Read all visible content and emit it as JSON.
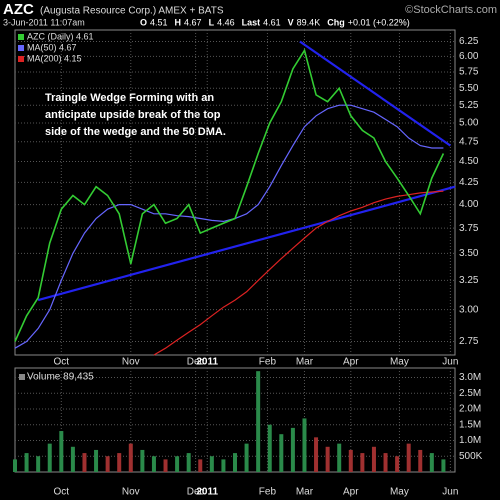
{
  "chart_data": {
    "type": "line",
    "title": "AZC",
    "subtitle": "(Augusta Resource Corp.) AMEX + BATS",
    "source": "©StockCharts.com",
    "date": "3-Jun-2011 11:07am",
    "quote": [
      {
        "label": "O",
        "value": "4.51"
      },
      {
        "label": "H",
        "value": "4.67"
      },
      {
        "label": "L",
        "value": "4.46"
      },
      {
        "label": "Last",
        "value": "4.61"
      },
      {
        "label": "V",
        "value": "89.4K"
      },
      {
        "label": "Chg",
        "value": "+0.01 (+0.22%)"
      }
    ],
    "annotation": [
      "Traingle Wedge Forming with an",
      "anticipate upside break of the top",
      "side of the wedge and the 50 DMA."
    ],
    "x": [
      0,
      5,
      10,
      15,
      20,
      25,
      30,
      35,
      40,
      45,
      50,
      55,
      60,
      65,
      70,
      75,
      80,
      85,
      90,
      95,
      100,
      105,
      110,
      115,
      120,
      125,
      130,
      135,
      140,
      145,
      150,
      155,
      160,
      165,
      170,
      175,
      180,
      185
    ],
    "xlim": [
      0,
      190
    ],
    "xticks": [
      {
        "value": 20,
        "label": "Oct"
      },
      {
        "value": 50,
        "label": "Nov"
      },
      {
        "value": 78,
        "label": "Dec"
      },
      {
        "value": 83,
        "label": "2011"
      },
      {
        "value": 109,
        "label": "Feb"
      },
      {
        "value": 125,
        "label": "Mar"
      },
      {
        "value": 145,
        "label": "Apr"
      },
      {
        "value": 166,
        "label": "May"
      },
      {
        "value": 188,
        "label": "Jun"
      }
    ],
    "log_scale": true,
    "grid": true,
    "ylim": [
      2.65,
      6.45
    ],
    "yticks": [
      2.75,
      {
        "value": 3,
        "label": "3.00"
      },
      3.25,
      {
        "value": 3.5,
        "label": "3.50"
      },
      3.75,
      {
        "value": 4,
        "label": "4.00"
      },
      4.25,
      {
        "value": 4.5,
        "label": "4.50"
      },
      4.75,
      {
        "value": 5,
        "label": "5.00"
      },
      5.25,
      {
        "value": 5.5,
        "label": "5.50"
      },
      5.75,
      {
        "value": 6,
        "label": "6.00"
      },
      6.25
    ],
    "series": [
      {
        "name": "AZC (Daily) 4.61",
        "color": "#33cc33",
        "values": [
          2.75,
          2.95,
          3.1,
          3.6,
          3.95,
          4.1,
          4.0,
          4.2,
          4.1,
          3.9,
          3.4,
          3.9,
          4.0,
          3.8,
          3.85,
          4.0,
          3.7,
          3.75,
          3.8,
          3.85,
          4.2,
          4.6,
          5.0,
          5.3,
          5.8,
          6.1,
          5.4,
          5.3,
          5.5,
          5.1,
          4.9,
          4.8,
          4.5,
          4.3,
          4.1,
          3.9,
          4.3,
          4.6
        ]
      },
      {
        "name": "MA(50) 4.67",
        "color": "#6666ff",
        "values": [
          2.7,
          2.75,
          2.85,
          3.0,
          3.25,
          3.5,
          3.7,
          3.85,
          3.95,
          4.0,
          4.0,
          3.95,
          3.9,
          3.9,
          3.88,
          3.87,
          3.85,
          3.83,
          3.82,
          3.85,
          3.9,
          4.0,
          4.2,
          4.45,
          4.7,
          4.95,
          5.1,
          5.2,
          5.25,
          5.25,
          5.2,
          5.15,
          5.05,
          4.95,
          4.8,
          4.7,
          4.67,
          4.67
        ]
      },
      {
        "name": "MA(200) 4.15",
        "color": "#dd2222",
        "values": [
          null,
          null,
          null,
          null,
          null,
          null,
          null,
          null,
          null,
          null,
          null,
          null,
          2.65,
          2.7,
          2.76,
          2.82,
          2.88,
          2.95,
          3.02,
          3.08,
          3.15,
          3.25,
          3.35,
          3.45,
          3.55,
          3.65,
          3.75,
          3.82,
          3.88,
          3.93,
          3.97,
          4.02,
          4.06,
          4.09,
          4.11,
          4.13,
          4.14,
          4.15
        ]
      }
    ],
    "trendlines": [
      {
        "color": "#2222ee",
        "x": [
          10,
          190
        ],
        "y": [
          3.08,
          4.2
        ]
      },
      {
        "color": "#2222ee",
        "x": [
          123,
          188
        ],
        "y": [
          6.25,
          4.7
        ]
      }
    ],
    "volume": {
      "label": "Volume 89,435",
      "ylim": [
        0,
        3300000
      ],
      "yticks": [
        {
          "value": 500000,
          "label": "500K"
        },
        {
          "value": 1000000,
          "label": "1.0M"
        },
        {
          "value": 1500000,
          "label": "1.5M"
        },
        {
          "value": 2000000,
          "label": "2.0M"
        },
        {
          "value": 2500000,
          "label": "2.5M"
        },
        {
          "value": 3000000,
          "label": "3.0M"
        }
      ],
      "values": [
        400000,
        600000,
        500000,
        900000,
        1300000,
        800000,
        600000,
        700000,
        500000,
        600000,
        900000,
        700000,
        500000,
        400000,
        500000,
        600000,
        400000,
        500000,
        400000,
        600000,
        900000,
        3200000,
        1500000,
        1200000,
        1400000,
        1700000,
        1100000,
        800000,
        900000,
        700000,
        600000,
        800000,
        600000,
        500000,
        900000,
        700000,
        600000,
        400000
      ]
    }
  }
}
